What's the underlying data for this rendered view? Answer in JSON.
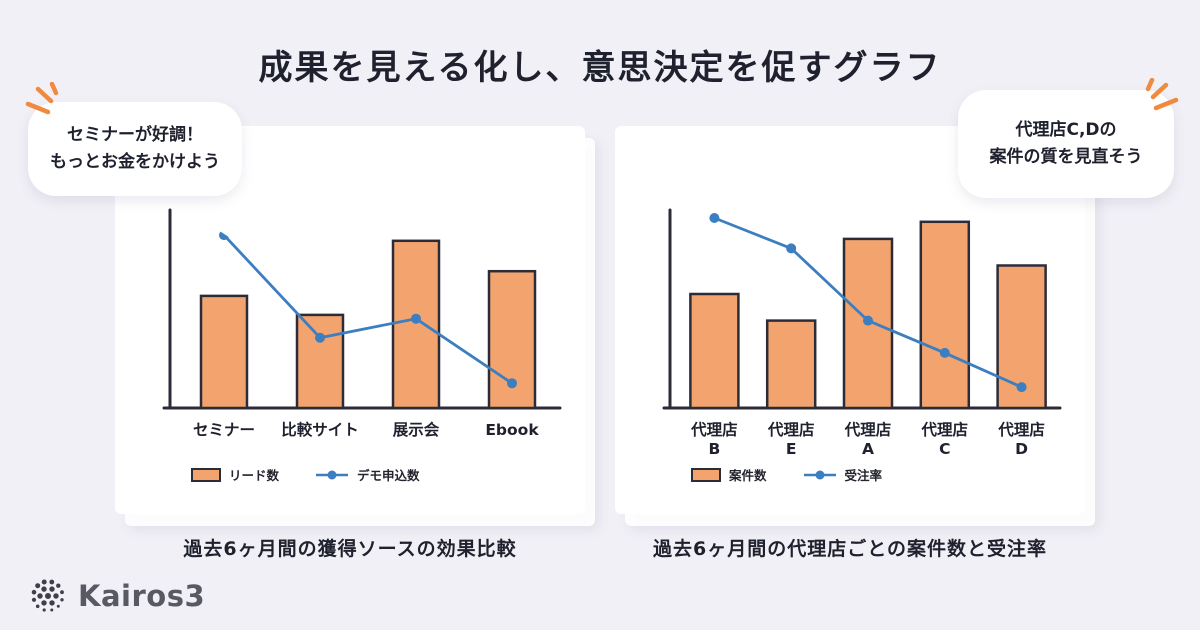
{
  "title": "成果を見える化し、意思決定を促すグラフ",
  "speech_bubbles": {
    "left": {
      "text": "セミナーが好調！\nもっとお金をかけよう"
    },
    "right": {
      "text": "代理店C,Dの\n案件の質を見直そう"
    }
  },
  "logo": {
    "text": "Kairos3"
  },
  "colors": {
    "background": "#f1f0f6",
    "bar": "#f2a36e",
    "line": "#3c7ec0",
    "outline": "#2c2c38",
    "accent": "#ef8a3e",
    "text": "#1f222e"
  },
  "chart_data": [
    {
      "type": "bar",
      "subtype": "bar+line-combo",
      "title": "過去6ヶ月間の獲得ソースの効果比較",
      "categories": [
        "セミナー",
        "比較サイト",
        "展示会",
        "Ebook"
      ],
      "series": [
        {
          "name": "リード数",
          "type": "bar",
          "values": [
            59,
            49,
            88,
            72
          ]
        },
        {
          "name": "デモ申込数",
          "type": "line",
          "values": [
            91,
            37,
            47,
            13
          ]
        }
      ],
      "xlabel": "",
      "ylabel": "",
      "ylim": [
        0,
        100
      ],
      "y_axis_tick_labels": false,
      "grid": false,
      "legend_position": "bottom-left",
      "note": "values are relative scale 0-100 read from bar/line pixel heights; no numeric axis labels shown"
    },
    {
      "type": "bar",
      "subtype": "bar+line-combo",
      "title": "過去6ヶ月間の代理店ごとの案件数と受注率",
      "categories": [
        "代理店\nB",
        "代理店\nE",
        "代理店\nA",
        "代理店\nC",
        "代理店\nD"
      ],
      "series": [
        {
          "name": "案件数",
          "type": "bar",
          "values": [
            60,
            46,
            89,
            98,
            75
          ]
        },
        {
          "name": "受注率",
          "type": "line",
          "values": [
            100,
            84,
            46,
            29,
            11
          ]
        }
      ],
      "xlabel": "",
      "ylabel": "",
      "ylim": [
        0,
        100
      ],
      "y_axis_tick_labels": false,
      "grid": false,
      "legend_position": "bottom-left",
      "note": "values are relative scale 0-100 read from bar/line pixel heights; no numeric axis labels shown"
    }
  ]
}
